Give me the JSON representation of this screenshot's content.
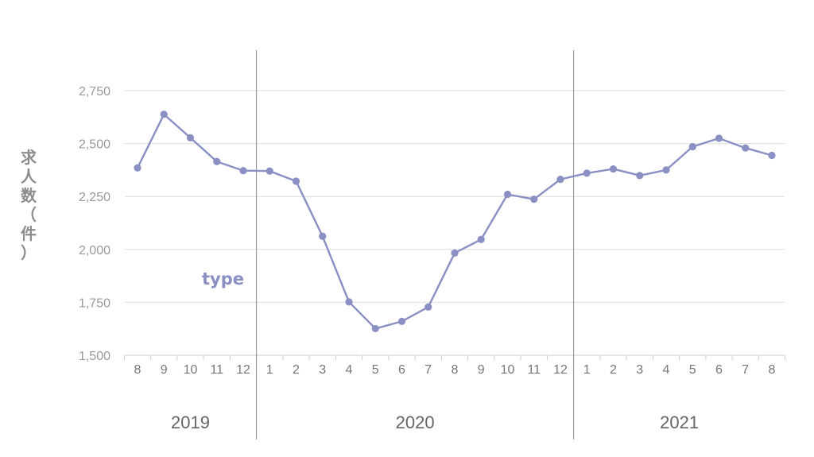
{
  "chart_data": {
    "type": "line",
    "ylabel": "求人数（件）",
    "ylim": [
      1500,
      2750
    ],
    "yticks": [
      "1,500",
      "1,750",
      "2,000",
      "2,250",
      "2,500",
      "2,750"
    ],
    "ytick_values": [
      1500,
      1750,
      2000,
      2250,
      2500,
      2750
    ],
    "categories": [
      "8",
      "9",
      "10",
      "11",
      "12",
      "1",
      "2",
      "3",
      "4",
      "5",
      "6",
      "7",
      "8",
      "9",
      "10",
      "11",
      "12",
      "1",
      "2",
      "3",
      "4",
      "5",
      "6",
      "7",
      "8"
    ],
    "year_groups": [
      {
        "label": "2019",
        "start": 0,
        "end": 4
      },
      {
        "label": "2020",
        "start": 5,
        "end": 16
      },
      {
        "label": "2021",
        "start": 17,
        "end": 24
      }
    ],
    "series": [
      {
        "name": "type",
        "color": "#8a8fc4",
        "values": [
          2385,
          2638,
          2527,
          2415,
          2372,
          2370,
          2322,
          2062,
          1752,
          1626,
          1660,
          1728,
          1983,
          2047,
          2260,
          2237,
          2331,
          2360,
          2380,
          2349,
          2375,
          2485,
          2525,
          2479,
          2444
        ]
      }
    ],
    "grid": true,
    "grid_color": "#dddddd",
    "axis_color": "#cccccc",
    "divider_color": "#888888"
  }
}
